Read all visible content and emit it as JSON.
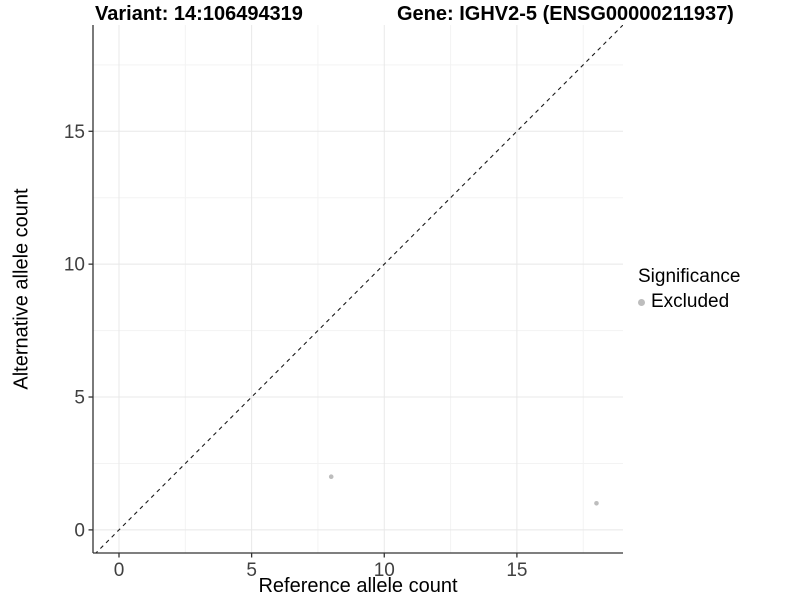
{
  "header": {
    "variant_title": "Variant: 14:106494319",
    "gene_title": "Gene: IGHV2-5 (ENSG00000211937)"
  },
  "chart_data": {
    "type": "scatter",
    "title_left": "Variant: 14:106494319",
    "title_right": "Gene: IGHV2-5 (ENSG00000211937)",
    "xlabel": "Reference allele count",
    "ylabel": "Alternative allele count",
    "xlim": [
      -0.98,
      19.0
    ],
    "ylim": [
      -0.87,
      19.0
    ],
    "x_major_ticks": [
      0,
      5,
      10,
      15
    ],
    "y_major_ticks": [
      0,
      5,
      10,
      15
    ],
    "x_minor_ticks": [
      2.5,
      7.5,
      12.5,
      17.5
    ],
    "y_minor_ticks": [
      2.5,
      7.5,
      12.5,
      17.5
    ],
    "grid": true,
    "series": [
      {
        "name": "Excluded",
        "color": "#bdbdbd",
        "points": [
          {
            "x": 8,
            "y": 2
          },
          {
            "x": 18,
            "y": 1
          }
        ]
      }
    ],
    "reference_line": {
      "type": "identity",
      "slope": 1,
      "intercept": 0,
      "linetype": "dashed",
      "color": "#1a1a1a"
    },
    "legend": {
      "title": "Significance",
      "position": "right",
      "entries": [
        {
          "label": "Excluded",
          "color": "#bdbdbd"
        }
      ]
    }
  },
  "style": {
    "background": "#ffffff",
    "axis_color": "#333333",
    "major_grid_color": "#e8e8e8",
    "minor_grid_color": "#f3f3f3",
    "tick_label_color": "#404040",
    "text_color": "#000000",
    "point_radius": 2.3,
    "tick_label_size": 19
  }
}
